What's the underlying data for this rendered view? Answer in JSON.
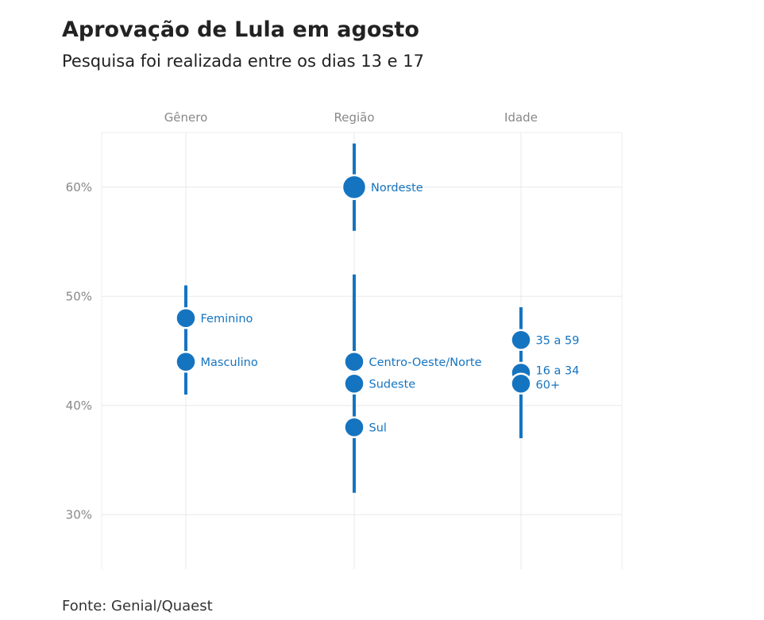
{
  "chart_data": {
    "type": "dot-range",
    "title": "Aprovação de Lula em agosto",
    "subtitle": "Pesquisa foi realizada entre os dias 13 e 17",
    "source": "Fonte: Genial/Quaest",
    "categories": [
      "Gênero",
      "Região",
      "Idade"
    ],
    "yticks": [
      "30%",
      "40%",
      "50%",
      "60%"
    ],
    "ylim": [
      25,
      65
    ],
    "grid": true,
    "color": "#1574c0",
    "ranges": [
      {
        "category": "Gênero",
        "low": 41,
        "high": 51
      },
      {
        "category": "Região",
        "low": 56,
        "high": 64
      },
      {
        "category": "Região",
        "low": 32,
        "high": 52
      },
      {
        "category": "Idade",
        "low": 37,
        "high": 49
      }
    ],
    "points": [
      {
        "category": "Gênero",
        "label": "Feminino",
        "value": 48
      },
      {
        "category": "Gênero",
        "label": "Masculino",
        "value": 44
      },
      {
        "category": "Região",
        "label": "Nordeste",
        "value": 60
      },
      {
        "category": "Região",
        "label": "Centro-Oeste/Norte",
        "value": 44
      },
      {
        "category": "Região",
        "label": "Sudeste",
        "value": 42
      },
      {
        "category": "Região",
        "label": "Sul",
        "value": 38
      },
      {
        "category": "Idade",
        "label": "35 a 59",
        "value": 46
      },
      {
        "category": "Idade",
        "label": "16 a 34",
        "value": 43
      },
      {
        "category": "Idade",
        "label": "60+",
        "value": 42
      }
    ]
  }
}
